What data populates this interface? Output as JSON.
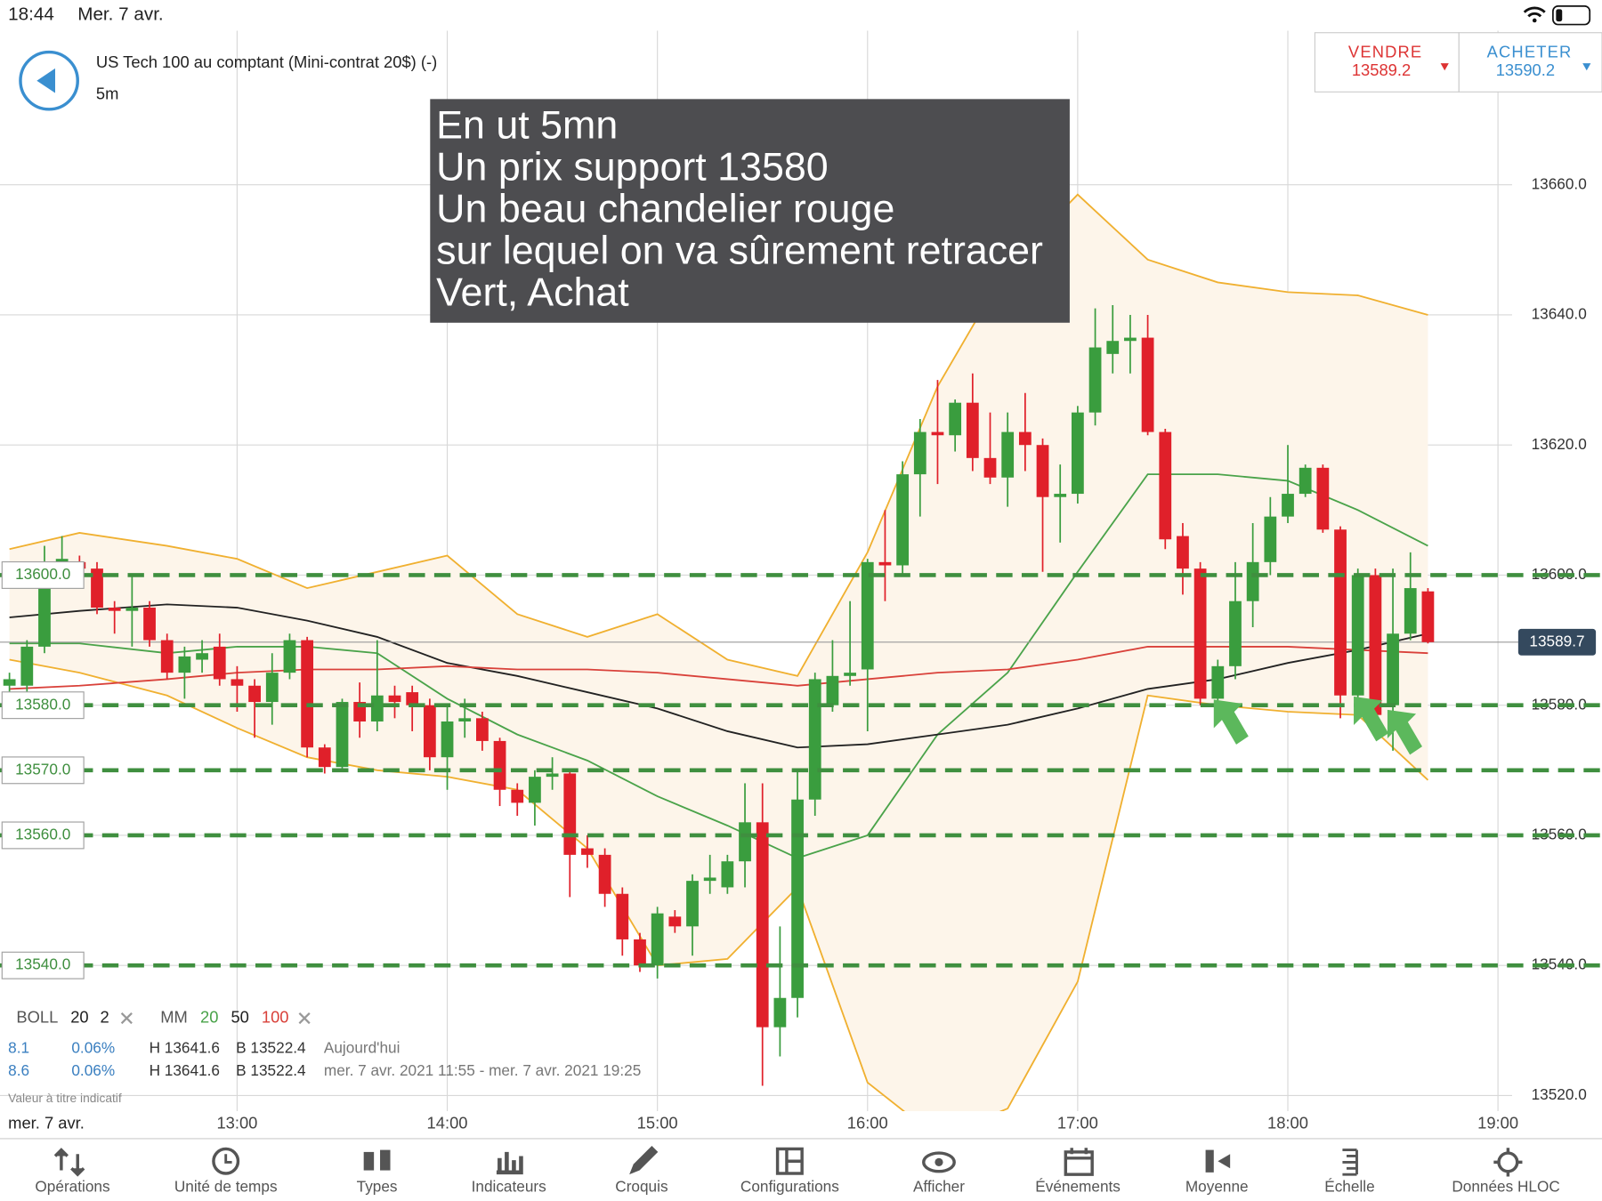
{
  "status_bar": {
    "time": "18:44",
    "date": "Mer. 7 avr."
  },
  "header": {
    "instrument": "US Tech 100 au comptant (Mini-contrat 20$) (-)",
    "timeframe": "5m"
  },
  "trade": {
    "sell_label": "VENDRE",
    "sell_price": 13589.2,
    "buy_label": "ACHETER",
    "buy_price": 13590.2
  },
  "annotation": {
    "lines": [
      "En ut 5mn",
      "Un prix support 13580",
      "Un beau chandelier rouge",
      "sur lequel on va sûrement retracer",
      "Vert, Achat"
    ]
  },
  "chart_data": {
    "type": "candlestick",
    "x": [
      715,
      720,
      725,
      730,
      735,
      740,
      745,
      750,
      755,
      760,
      765,
      770,
      775,
      780,
      785,
      790,
      795,
      800,
      805,
      810,
      815,
      820,
      825,
      830,
      835,
      840,
      845,
      850,
      855,
      860,
      865,
      870,
      875,
      880,
      885,
      890,
      895,
      900,
      905,
      910,
      915,
      920,
      925,
      930,
      935,
      940,
      945,
      950,
      955,
      960,
      965,
      970,
      975,
      980,
      985,
      990,
      995,
      1000,
      1005,
      1010,
      1015,
      1020,
      1025,
      1030,
      1035,
      1040,
      1045,
      1050,
      1055,
      1060,
      1065,
      1070,
      1075,
      1080,
      1085,
      1090,
      1095,
      1100,
      1105,
      1110,
      1115,
      1120
    ],
    "open": [
      13583,
      13583,
      13589,
      13602,
      13602,
      13601,
      13595,
      13594.5,
      13595,
      13590,
      13585,
      13587,
      13589,
      13584,
      13583,
      13580.5,
      13585,
      13590,
      13573.5,
      13570.5,
      13580.5,
      13577.5,
      13581.5,
      13582,
      13580,
      13572,
      13577.5,
      13578,
      13574.5,
      13567,
      13565,
      13569,
      13569.5,
      13558,
      13557,
      13551,
      13544,
      13540,
      13547.5,
      13546,
      13553,
      13552,
      13556,
      13562,
      13530.5,
      13535,
      13565.5,
      13580,
      13584.5,
      13585.5,
      13602,
      13601.5,
      13615.5,
      13622,
      13621.5,
      13626.5,
      13618,
      13615,
      13622,
      13620,
      13612,
      13612.5,
      13625,
      13634,
      13636,
      13636.5,
      13622,
      13606,
      13601,
      13581,
      13586,
      13596,
      13602,
      13609,
      13612.5,
      13616.5,
      13607,
      13581.5,
      13600,
      13580,
      13591,
      13597.5
    ],
    "high": [
      13585,
      13590,
      13604.5,
      13606,
      13603,
      13602,
      13596,
      13600,
      13596,
      13591,
      13589,
      13590,
      13591,
      13586,
      13584,
      13588,
      13591,
      13590.5,
      13574,
      13581,
      13583.5,
      13590,
      13583,
      13583,
      13581,
      13580,
      13581,
      13579,
      13575,
      13568,
      13570,
      13572,
      13570,
      13560,
      13558,
      13552,
      13545,
      13549,
      13548.5,
      13554,
      13557,
      13557,
      13568,
      13568,
      13546,
      13570,
      13585,
      13590,
      13596,
      13602.5,
      13610,
      13617.5,
      13624,
      13630,
      13627,
      13631,
      13625,
      13625,
      13628,
      13621,
      13617,
      13626,
      13641,
      13641.5,
      13640,
      13640,
      13622.5,
      13608,
      13602,
      13587,
      13602,
      13608,
      13612,
      13620,
      13617,
      13617,
      13607.5,
      13601,
      13601,
      13601,
      13603.5,
      13598
    ],
    "low": [
      13582,
      13582,
      13588,
      13600,
      13599,
      13594,
      13591,
      13589,
      13589,
      13584,
      13581,
      13585,
      13583,
      13579,
      13575,
      13577,
      13584,
      13572,
      13569.5,
      13570,
      13575,
      13576,
      13578,
      13576,
      13570,
      13567,
      13575,
      13573,
      13564.5,
      13563,
      13561.5,
      13567,
      13550.5,
      13555,
      13549,
      13541.5,
      13539,
      13538,
      13545,
      13541.5,
      13551,
      13551,
      13552,
      13521.5,
      13526,
      13532,
      13563,
      13579,
      13583,
      13576,
      13596,
      13600,
      13609,
      13614,
      13619,
      13616,
      13614,
      13610.5,
      13616,
      13600.5,
      13605,
      13611,
      13623,
      13631,
      13631,
      13621.5,
      13604,
      13597,
      13580,
      13580,
      13584,
      13592,
      13600,
      13608,
      13612,
      13606.5,
      13578,
      13579,
      13577.5,
      13573,
      13590,
      13589.5
    ],
    "close": [
      13584,
      13589,
      13602,
      13602.5,
      13601,
      13595,
      13594.5,
      13595,
      13590,
      13585,
      13587.5,
      13588,
      13584,
      13583,
      13580.5,
      13585,
      13590,
      13573.5,
      13570.5,
      13580.5,
      13577.5,
      13581.5,
      13580.5,
      13580,
      13572,
      13577.5,
      13578,
      13574.5,
      13567,
      13565,
      13569,
      13569.5,
      13557,
      13557,
      13551,
      13544,
      13540,
      13548,
      13546,
      13553,
      13553.5,
      13556,
      13562,
      13530.5,
      13535,
      13565.5,
      13584,
      13584.5,
      13585,
      13602,
      13601.5,
      13615.5,
      13622,
      13621.5,
      13626.5,
      13618,
      13615,
      13622,
      13620,
      13612,
      13612.5,
      13625,
      13635,
      13636,
      13636.5,
      13622,
      13605.5,
      13601,
      13581,
      13586,
      13596,
      13602,
      13609,
      13612.5,
      13616.5,
      13607,
      13581.5,
      13600,
      13578.5,
      13591,
      13598,
      13589.7
    ],
    "up_color": "#3a9d3e",
    "down_color": "#e0202a",
    "xlim": [
      712.3,
      1169.7
    ],
    "ylim": [
      13517.6,
      13683.7
    ],
    "xticks": [
      {
        "value": 780,
        "label": "13:00"
      },
      {
        "value": 840,
        "label": "14:00"
      },
      {
        "value": 900,
        "label": "15:00"
      },
      {
        "value": 960,
        "label": "16:00"
      },
      {
        "value": 1020,
        "label": "17:00"
      },
      {
        "value": 1080,
        "label": "18:00"
      },
      {
        "value": 1140,
        "label": "19:00"
      }
    ],
    "yticks": [
      {
        "value": 13520,
        "label": "13520.0"
      },
      {
        "value": 13540,
        "label": "13540.0"
      },
      {
        "value": 13560,
        "label": "13560.0"
      },
      {
        "value": 13580,
        "label": "13580.0"
      },
      {
        "value": 13600,
        "label": "13600.0"
      },
      {
        "value": 13620,
        "label": "13620.0"
      },
      {
        "value": 13640,
        "label": "13640.0"
      },
      {
        "value": 13660,
        "label": "13660.0"
      }
    ],
    "grid": true,
    "levels": [
      {
        "value": 13600,
        "label": "13600.0"
      },
      {
        "value": 13580,
        "label": "13580.0"
      },
      {
        "value": 13570,
        "label": "13570.0"
      },
      {
        "value": 13560,
        "label": "13560.0"
      },
      {
        "value": 13540,
        "label": "13540.0"
      }
    ],
    "level_color": "#3f8f3f",
    "last_price": 13589.7,
    "last_price_color": "#34495e",
    "bollinger": {
      "color": "#f0b030",
      "fill": "#fdf5ea",
      "x": [
        715,
        735,
        760,
        780,
        800,
        820,
        840,
        860,
        880,
        900,
        920,
        940,
        960,
        980,
        1000,
        1020,
        1040,
        1060,
        1080,
        1100,
        1120
      ],
      "upper": [
        13604,
        13606.5,
        13604.5,
        13602.5,
        13598,
        13600.5,
        13603,
        13594,
        13590.5,
        13594,
        13587,
        13584.5,
        13603.5,
        13629,
        13647.5,
        13658.5,
        13648.5,
        13645,
        13643.5,
        13643,
        13640
      ],
      "lower": [
        13587,
        13585,
        13581.5,
        13576.5,
        13572,
        13570,
        13569,
        13567,
        13558,
        13540,
        13541,
        13552,
        13522,
        13513.5,
        13518,
        13537.5,
        13581.5,
        13580,
        13579,
        13578.5,
        13568.5
      ]
    },
    "moving_averages": {
      "x": [
        715,
        735,
        760,
        780,
        800,
        820,
        840,
        860,
        880,
        900,
        920,
        940,
        960,
        980,
        1000,
        1020,
        1040,
        1060,
        1080,
        1100,
        1120
      ],
      "series": [
        {
          "color": "#4aa34a",
          "values": [
            13589.5,
            13589.5,
            13588,
            13589,
            13589,
            13588,
            13581,
            13575.5,
            13571.5,
            13566,
            13561.5,
            13556.5,
            13560,
            13575.5,
            13585,
            13600.5,
            13615.5,
            13615.5,
            13614.5,
            13610,
            13604.5
          ]
        },
        {
          "color": "#222222",
          "values": [
            13593.5,
            13594.5,
            13595.5,
            13595,
            13593,
            13590.5,
            13586.5,
            13584.5,
            13582,
            13579.5,
            13576,
            13573.5,
            13574,
            13575.5,
            13577,
            13579.5,
            13582.5,
            13584,
            13586.5,
            13588.5,
            13591
          ]
        },
        {
          "color": "#d9413a",
          "values": [
            13582.5,
            13583,
            13584,
            13585,
            13585.5,
            13585.5,
            13586,
            13585.5,
            13585.5,
            13585,
            13584,
            13583,
            13584,
            13585,
            13585.5,
            13587,
            13589,
            13589,
            13589,
            13588.5,
            13588
          ]
        }
      ]
    }
  },
  "indicator_legend": {
    "boll_label": "BOLL",
    "boll_period": 20,
    "boll_dev": 2,
    "mm_label": "MM",
    "mm_periods": [
      20,
      50,
      100
    ]
  },
  "info_rows": [
    [
      8.1,
      "0.06%",
      "H 13641.6",
      "B 13522.4",
      "Aujourd'hui"
    ],
    [
      8.6,
      "0.06%",
      "H 13641.6",
      "B 13522.4",
      "mer. 7 avr. 2021 11:55 - mer. 7 avr. 2021 19:25"
    ]
  ],
  "disclaimer": "Valeur à titre indicatif",
  "axis_date": "mer. 7 avr.",
  "toolbar": [
    "Opérations",
    "Unité de temps",
    "Types",
    "Indicateurs",
    "Croquis",
    "Configurations",
    "Afficher",
    "Événements",
    "Moyenne",
    "Échelle",
    "Données HLOC"
  ]
}
